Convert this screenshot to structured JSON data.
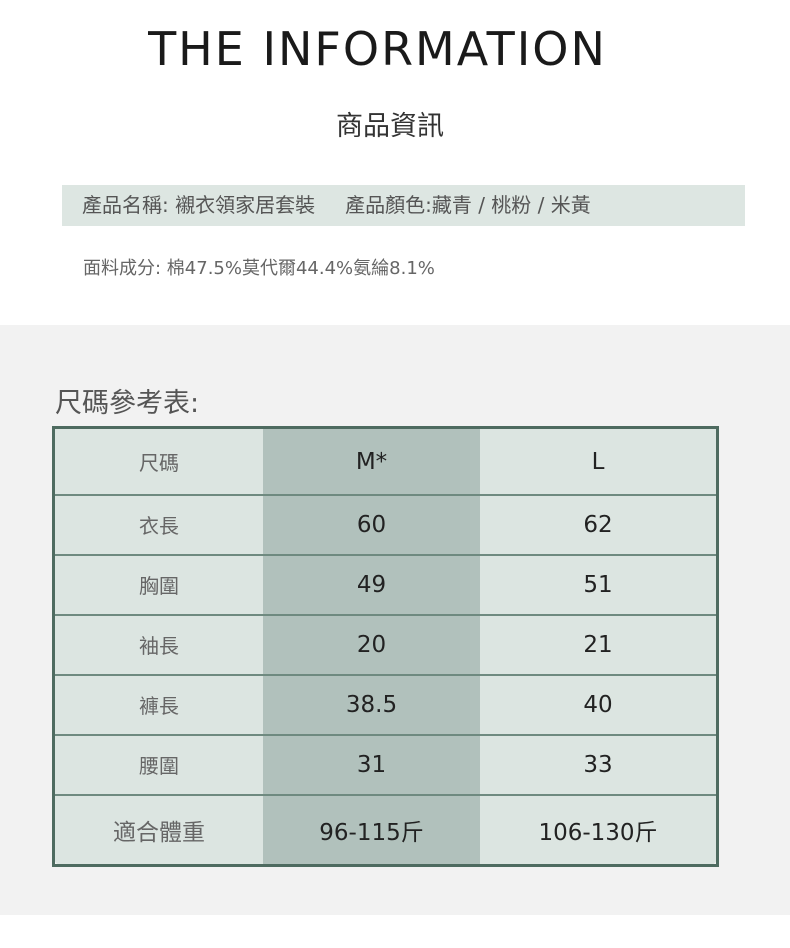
{
  "header": {
    "title": "THE INFORMATION",
    "subtitle": "商品資訊"
  },
  "product": {
    "name": "產品名稱: 襯衣領家居套裝",
    "color": "產品顏色:藏青 / 桃粉 / 米黃",
    "fabric": "面料成分: 棉47.5%莫代爾44.4%氨綸8.1%"
  },
  "size_chart": {
    "title": "尺碼參考表:",
    "headers": [
      "尺碼",
      "M*",
      "L"
    ],
    "rows": [
      [
        "衣長",
        "60",
        "62"
      ],
      [
        "胸圍",
        "49",
        "51"
      ],
      [
        "袖長",
        "20",
        "21"
      ],
      [
        "褲長",
        "38.5",
        "40"
      ],
      [
        "腰圍",
        "31",
        "33"
      ],
      [
        "適合體重",
        "96-115斤",
        "106-130斤"
      ]
    ]
  },
  "colors": {
    "accent": "#4e6b60",
    "cell": "#dce5e1",
    "highlight": "#b1c1bc"
  }
}
